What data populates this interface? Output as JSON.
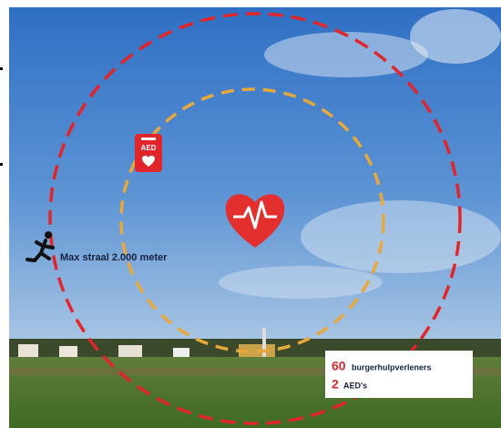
{
  "icon_label": "AED",
  "radius_label": "Max straal 2.000 meter",
  "stats": [
    {
      "count": 60,
      "label": "burgerhulpverleners"
    },
    {
      "count": 2,
      "label": "AED's"
    }
  ]
}
